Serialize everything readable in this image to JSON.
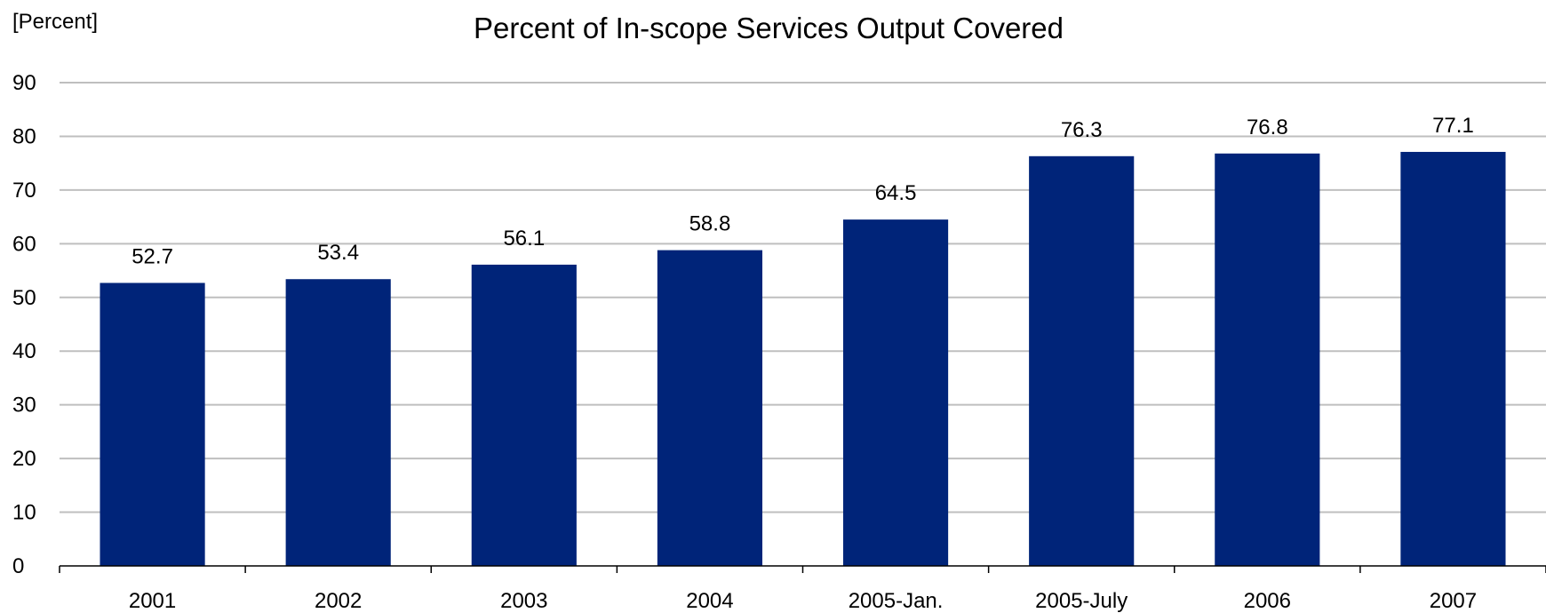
{
  "chart_data": {
    "type": "bar",
    "title": "Percent of In-scope Services Output Covered",
    "ylabel": "[Percent]",
    "xlabel": "",
    "categories": [
      "2001",
      "2002",
      "2003",
      "2004",
      "2005-Jan.",
      "2005-July",
      "2006",
      "2007"
    ],
    "values": [
      52.7,
      53.4,
      56.1,
      58.8,
      64.5,
      76.3,
      76.8,
      77.1
    ],
    "data_labels": [
      "52.7",
      "53.4",
      "56.1",
      "58.8",
      "64.5",
      "76.3",
      "76.8",
      "77.1"
    ],
    "ylim": [
      0,
      90
    ],
    "yticks": [
      "0",
      "10",
      "20",
      "30",
      "40",
      "50",
      "60",
      "70",
      "80",
      "90"
    ],
    "grid": true,
    "legend": "none",
    "bar_color": "#002479"
  }
}
